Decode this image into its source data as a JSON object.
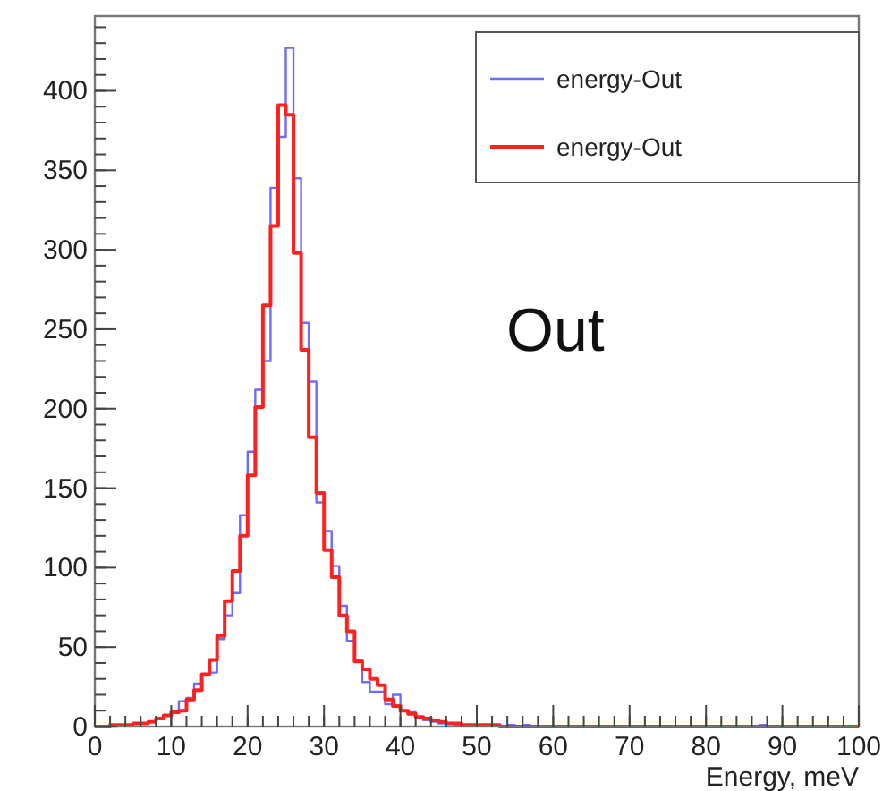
{
  "chart_data": {
    "type": "histogram",
    "xlabel": "Energy, meV",
    "annotations": [
      "Out"
    ],
    "bins": [
      0,
      1,
      2,
      3,
      4,
      5,
      6,
      7,
      8,
      9,
      10,
      11,
      12,
      13,
      14,
      15,
      16,
      17,
      18,
      19,
      20,
      21,
      22,
      23,
      24,
      25,
      26,
      27,
      28,
      29,
      30,
      31,
      32,
      33,
      34,
      35,
      36,
      37,
      38,
      39,
      40,
      41,
      42,
      43,
      44,
      45,
      46,
      47,
      48,
      49,
      50,
      51,
      52,
      53,
      54,
      55,
      56,
      57,
      58,
      59,
      60,
      61,
      62,
      63,
      64,
      65,
      66,
      67,
      68,
      69,
      70,
      71,
      72,
      73,
      74,
      75,
      76,
      77,
      78,
      79,
      80,
      81,
      82,
      83,
      84,
      85,
      86,
      87,
      88,
      89,
      90,
      91,
      92,
      93,
      94,
      95,
      96,
      97,
      98,
      99,
      100
    ],
    "series": [
      {
        "name": "energy-Out",
        "color": "#6c6cff",
        "values": [
          0,
          0,
          0,
          1,
          1,
          2,
          2,
          3,
          5,
          7,
          9,
          16,
          18,
          27,
          33,
          34,
          55,
          70,
          84,
          133,
          173,
          212,
          230,
          339,
          371,
          427,
          345,
          254,
          217,
          141,
          123,
          101,
          76,
          54,
          42,
          28,
          22,
          22,
          14,
          20,
          10,
          9,
          6,
          4,
          3,
          2,
          2,
          1,
          1,
          1,
          1,
          1,
          1,
          0,
          1,
          0,
          1,
          0,
          0,
          0,
          0,
          0,
          0,
          0,
          0,
          0,
          0,
          0,
          0,
          0,
          0,
          0,
          0,
          0,
          0,
          0,
          0,
          0,
          0,
          0,
          0,
          0,
          0,
          0,
          0,
          0,
          0,
          1,
          0,
          0,
          0,
          0,
          0,
          0,
          0,
          0,
          0,
          0,
          0,
          0
        ]
      },
      {
        "name": "energy-Out",
        "color": "#ff2020",
        "values": [
          0,
          0,
          1,
          1,
          1,
          2,
          2,
          3,
          5,
          7,
          9,
          10,
          17,
          23,
          33,
          42,
          57,
          79,
          98,
          120,
          158,
          201,
          265,
          315,
          391,
          385,
          298,
          237,
          182,
          147,
          111,
          94,
          70,
          60,
          41,
          36,
          30,
          26,
          17,
          13,
          10,
          8,
          6,
          5,
          4,
          3,
          2,
          2,
          1,
          1,
          1,
          1,
          1,
          0,
          0,
          0,
          0,
          0,
          0,
          0,
          0,
          0,
          0,
          0,
          0,
          0,
          0,
          0,
          0,
          0,
          0,
          0,
          0,
          0,
          0,
          0,
          0,
          0,
          0,
          0,
          0,
          0,
          0,
          0,
          0,
          0,
          0,
          0,
          0,
          0,
          0,
          0,
          0,
          0,
          0,
          0,
          0,
          0,
          0,
          0
        ]
      }
    ],
    "xlim": [
      0,
      100
    ],
    "xticks": [
      0,
      10,
      20,
      30,
      40,
      50,
      60,
      70,
      80,
      90,
      100
    ],
    "ylim": [
      0,
      447
    ],
    "yticks": [
      0,
      50,
      100,
      150,
      200,
      250,
      300,
      350,
      400
    ],
    "grid": false,
    "legend": "top right"
  }
}
